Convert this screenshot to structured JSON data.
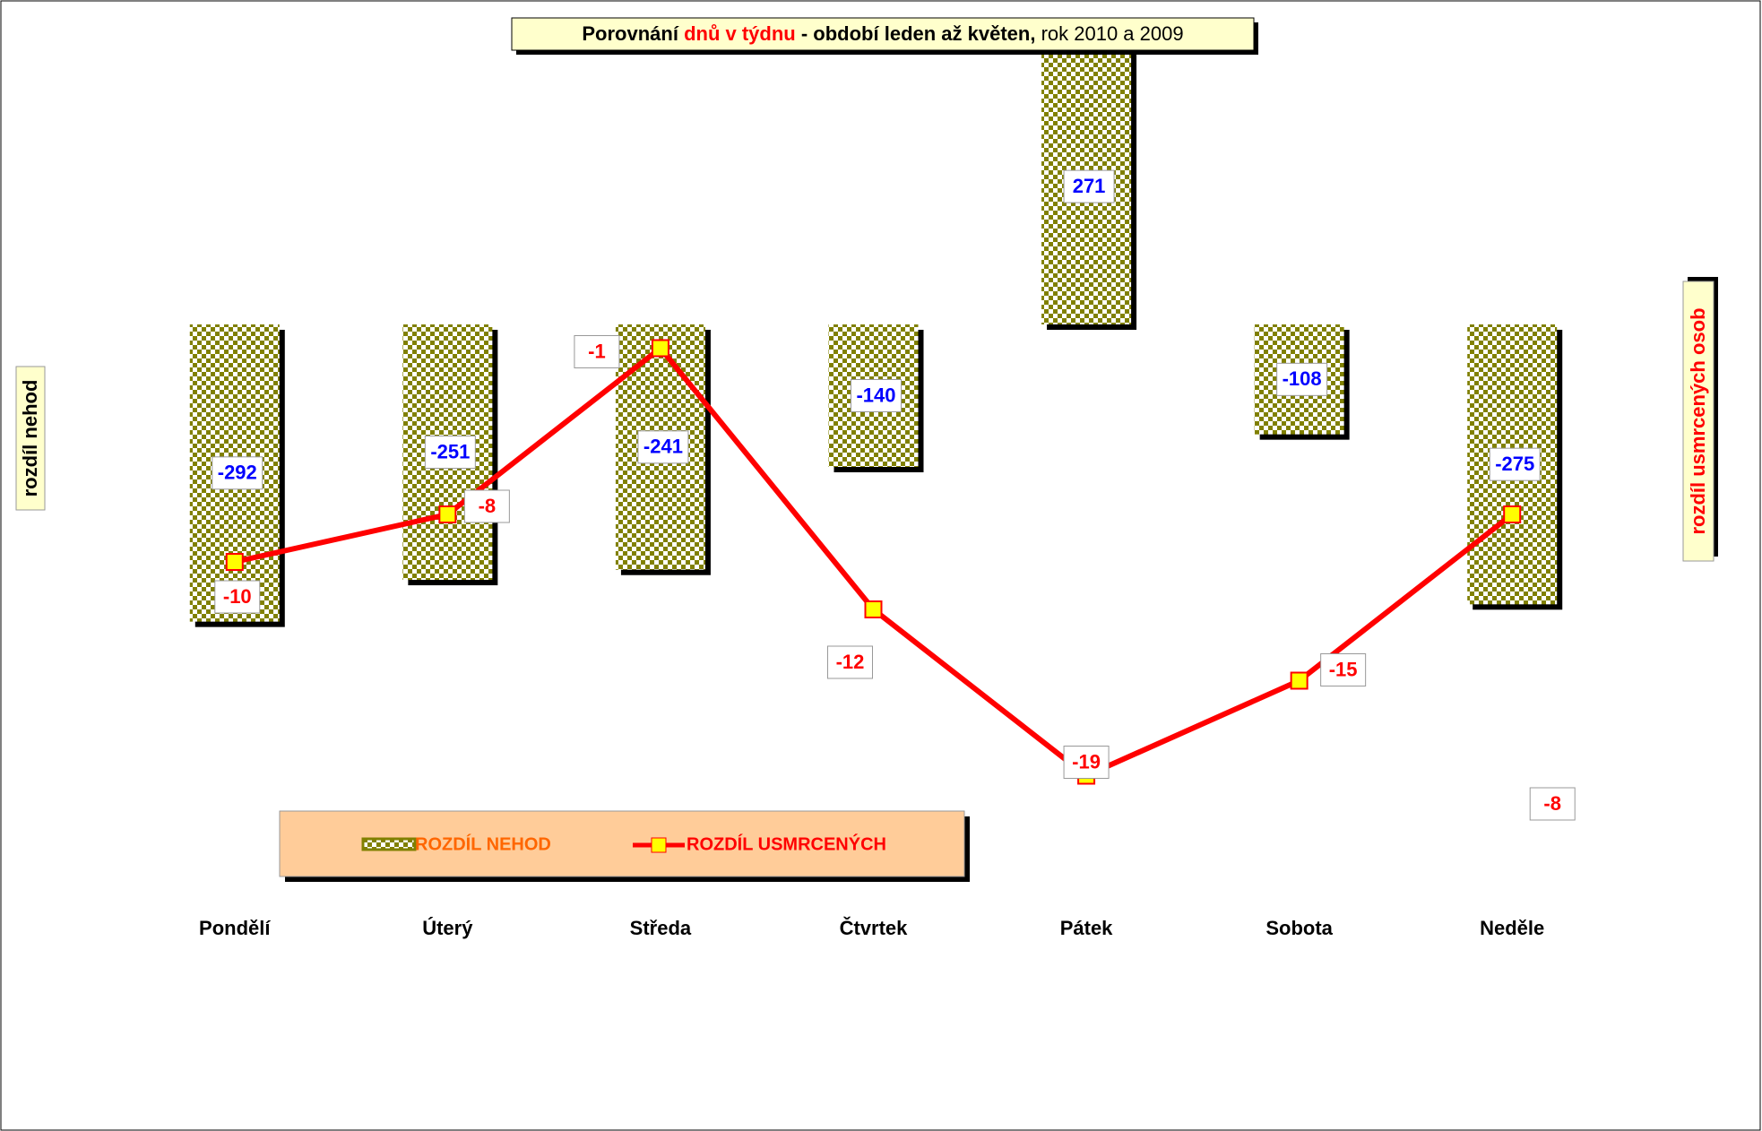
{
  "chart_data": {
    "type": "bar_line",
    "title_parts": [
      "Porovnání",
      "dnů v týdnu",
      "- období leden až květen,",
      "rok 2010 a 2009"
    ],
    "categories": [
      "Pondělí",
      "Úterý",
      "Středa",
      "Čtvrtek",
      "Pátek",
      "Sobota",
      "Neděle"
    ],
    "series": [
      {
        "name": "ROZDÍL NEHOD",
        "type": "bar",
        "color": "#808000",
        "values": [
          -292,
          -251,
          -241,
          -140,
          271,
          -108,
          -275
        ]
      },
      {
        "name": "ROZDÍL USMRCENÝCH",
        "type": "line",
        "axis": "y2",
        "color": "#ff0000",
        "values": [
          -10,
          -8,
          -1,
          -12,
          -19,
          -15,
          -8
        ]
      }
    ],
    "ylabel": "rozdíl nehod",
    "y2label": "rozdíl usmrcených osob",
    "ylim": [
      -560,
      280
    ],
    "yticks": [
      -560,
      -420,
      -280,
      -140,
      0,
      140,
      280
    ],
    "y2lim": [
      -24,
      12
    ],
    "y2ticks": [
      -24,
      -18,
      -12,
      -6,
      0,
      6,
      12
    ],
    "grid": true
  }
}
